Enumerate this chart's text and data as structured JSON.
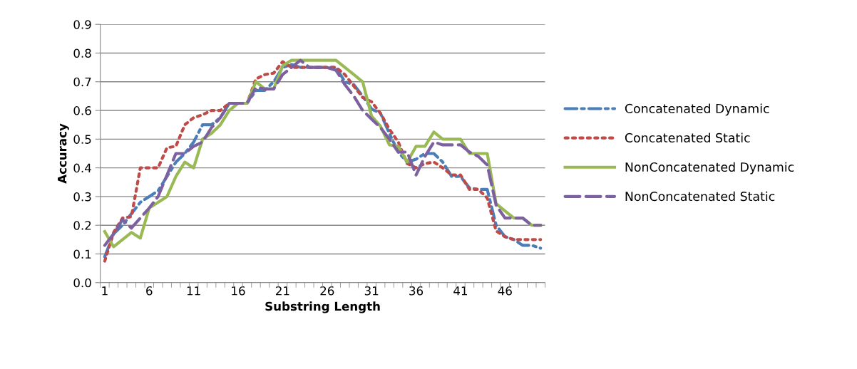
{
  "chart_data": {
    "type": "line",
    "xlabel": "Substring Length",
    "ylabel": "Accuracy",
    "categories": [
      "1",
      null,
      null,
      null,
      null,
      "6",
      null,
      null,
      null,
      null,
      "11",
      null,
      null,
      null,
      null,
      "16",
      null,
      null,
      null,
      null,
      "21",
      null,
      null,
      null,
      null,
      "26",
      null,
      null,
      null,
      null,
      "31",
      null,
      null,
      null,
      null,
      "36",
      null,
      null,
      null,
      null,
      "41",
      null,
      null,
      null,
      null,
      "46",
      null,
      null,
      null,
      null
    ],
    "series": [
      {
        "name": "Concatenated Dynamic",
        "color": "#4a7ebb",
        "line_style": "dashdot",
        "values": [
          0.09,
          0.17,
          0.2,
          0.24,
          0.28,
          0.3,
          0.32,
          0.37,
          0.42,
          0.45,
          0.49,
          0.55,
          0.55,
          0.575,
          0.625,
          0.625,
          0.625,
          0.67,
          0.67,
          0.7,
          0.75,
          0.76,
          0.75,
          0.75,
          0.75,
          0.75,
          0.75,
          0.7,
          0.69,
          0.65,
          0.605,
          0.59,
          0.52,
          0.455,
          0.42,
          0.43,
          0.45,
          0.45,
          0.42,
          0.37,
          0.37,
          0.33,
          0.325,
          0.325,
          0.2,
          0.16,
          0.15,
          0.13,
          0.13,
          0.12
        ]
      },
      {
        "name": "Concatenated Static",
        "color": "#be4b48",
        "line_style": "dotted",
        "values": [
          0.075,
          0.175,
          0.225,
          0.23,
          0.4,
          0.4,
          0.4,
          0.47,
          0.475,
          0.55,
          0.575,
          0.585,
          0.6,
          0.6,
          0.625,
          0.625,
          0.625,
          0.71,
          0.725,
          0.73,
          0.77,
          0.75,
          0.75,
          0.75,
          0.75,
          0.75,
          0.75,
          0.725,
          0.685,
          0.645,
          0.63,
          0.59,
          0.535,
          0.49,
          0.415,
          0.4,
          0.415,
          0.42,
          0.4,
          0.375,
          0.375,
          0.325,
          0.325,
          0.295,
          0.18,
          0.16,
          0.15,
          0.15,
          0.15,
          0.15
        ]
      },
      {
        "name": "NonConcatenated Dynamic",
        "color": "#98b954",
        "line_style": "solid",
        "values": [
          0.178,
          0.125,
          0.15,
          0.175,
          0.155,
          0.26,
          0.28,
          0.3,
          0.37,
          0.42,
          0.4,
          0.5,
          0.52,
          0.55,
          0.6,
          0.625,
          0.625,
          0.7,
          0.675,
          0.675,
          0.755,
          0.775,
          0.775,
          0.775,
          0.775,
          0.775,
          0.775,
          0.75,
          0.725,
          0.7,
          0.58,
          0.545,
          0.48,
          0.475,
          0.42,
          0.475,
          0.475,
          0.525,
          0.5,
          0.5,
          0.5,
          0.45,
          0.45,
          0.45,
          0.275,
          0.25,
          0.225,
          0.225,
          0.2,
          0.2
        ]
      },
      {
        "name": "NonConcatenated Static",
        "color": "#7d60a0",
        "line_style": "dashed",
        "values": [
          0.13,
          0.17,
          0.22,
          0.19,
          0.225,
          0.26,
          0.3,
          0.375,
          0.45,
          0.45,
          0.475,
          0.49,
          0.54,
          0.575,
          0.625,
          0.625,
          0.625,
          0.68,
          0.675,
          0.675,
          0.725,
          0.75,
          0.775,
          0.75,
          0.75,
          0.75,
          0.74,
          0.69,
          0.65,
          0.6,
          0.57,
          0.54,
          0.5,
          0.455,
          0.455,
          0.375,
          0.44,
          0.49,
          0.48,
          0.48,
          0.48,
          0.455,
          0.44,
          0.41,
          0.27,
          0.225,
          0.225,
          0.225,
          0.2,
          0.2
        ]
      }
    ],
    "ylim": [
      0,
      0.9
    ],
    "yticks": [
      {
        "value": 0,
        "label": "0.0"
      },
      0.1,
      0.2,
      0.3,
      0.4,
      0.5,
      0.6,
      0.7,
      0.8,
      0.9
    ],
    "grid": "y",
    "legend": "right"
  }
}
